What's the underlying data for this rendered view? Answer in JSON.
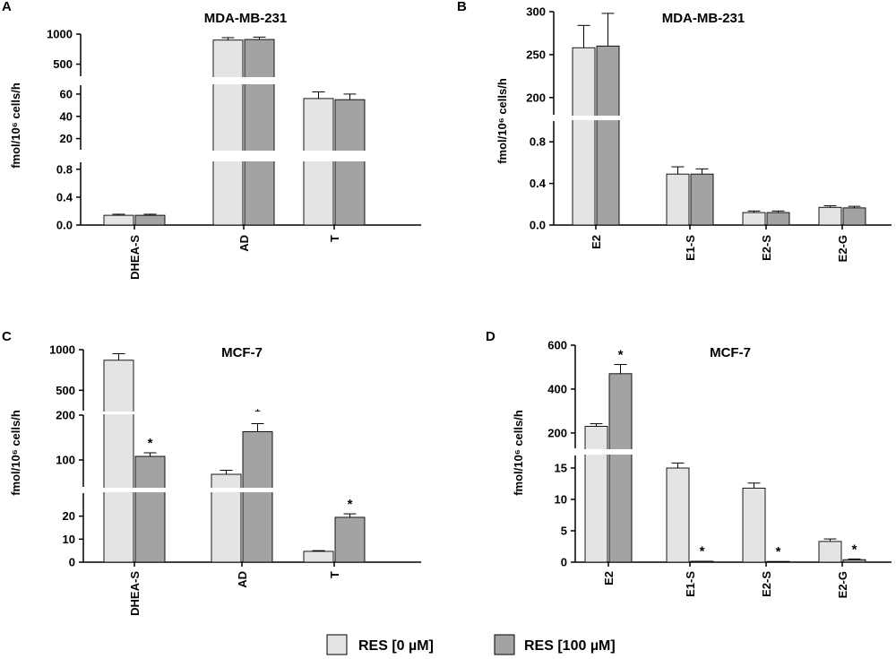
{
  "legend": {
    "series": [
      {
        "name": "RES [0 µM]",
        "color": "#e4e4e4"
      },
      {
        "name": "RES [100 µM]",
        "color": "#a3a3a3"
      }
    ]
  },
  "chart_data": [
    {
      "panel": "A",
      "type": "bar",
      "title": "MDA-MB-231",
      "ylabel": "fmol/10⁶ cells/h",
      "categories": [
        "DHEA-S",
        "AD",
        "T"
      ],
      "y_segments": [
        {
          "range": [
            0,
            0.9
          ],
          "ticks": [
            "0.0",
            "0.4",
            "0.8"
          ]
        },
        {
          "range": [
            10,
            68
          ],
          "ticks": [
            "20",
            "40",
            "60"
          ]
        },
        {
          "range": [
            300,
            1000
          ],
          "ticks": [
            "500",
            "1000"
          ]
        }
      ],
      "series": [
        {
          "name": "RES [0 µM]",
          "values": [
            0.14,
            900,
            56
          ],
          "errors": [
            0.015,
            40,
            6
          ],
          "significant": [
            false,
            false,
            false
          ]
        },
        {
          "name": "RES [100 µM]",
          "values": [
            0.14,
            910,
            55
          ],
          "errors": [
            0.015,
            40,
            5
          ],
          "significant": [
            false,
            false,
            false
          ]
        }
      ]
    },
    {
      "panel": "B",
      "type": "bar",
      "title": "MDA-MB-231",
      "ylabel": "fmol/10⁶ cells/h",
      "categories": [
        "E2",
        "E1-S",
        "E2-S",
        "E2-G"
      ],
      "y_segments": [
        {
          "range": [
            0,
            1.0
          ],
          "ticks": [
            "0.0",
            "0.4",
            "0.8"
          ]
        },
        {
          "range": [
            180,
            300
          ],
          "ticks": [
            "200",
            "250",
            "300"
          ]
        }
      ],
      "series": [
        {
          "name": "RES [0 µM]",
          "values": [
            258,
            0.49,
            0.12,
            0.17
          ],
          "errors": [
            26,
            0.07,
            0.015,
            0.015
          ],
          "significant": [
            false,
            false,
            false,
            false
          ]
        },
        {
          "name": "RES [100 µM]",
          "values": [
            260,
            0.49,
            0.12,
            0.165
          ],
          "errors": [
            38,
            0.05,
            0.015,
            0.015
          ],
          "significant": [
            false,
            false,
            false,
            false
          ]
        }
      ]
    },
    {
      "panel": "C",
      "type": "bar",
      "title": "MCF-7",
      "ylabel": "fmol/10⁶ cells/h",
      "categories": [
        "DHEA-S",
        "AD",
        "T"
      ],
      "y_segments": [
        {
          "range": [
            0,
            30
          ],
          "ticks": [
            "0",
            "10",
            "20"
          ]
        },
        {
          "range": [
            40,
            200
          ],
          "ticks": [
            "100",
            "200"
          ]
        },
        {
          "range": [
            250,
            1000
          ],
          "ticks": [
            "500",
            "1000"
          ]
        }
      ],
      "series": [
        {
          "name": "RES [0 µM]",
          "values": [
            870,
            68,
            4.7
          ],
          "errors": [
            80,
            9,
            0.3
          ],
          "significant": [
            false,
            false,
            false
          ]
        },
        {
          "name": "RES [100 µM]",
          "values": [
            108,
            163,
            19.5
          ],
          "errors": [
            8,
            18,
            1.5
          ],
          "significant": [
            true,
            true,
            true
          ]
        }
      ]
    },
    {
      "panel": "D",
      "type": "bar",
      "title": "MCF-7",
      "ylabel": "fmol/10⁶ cells/h",
      "categories": [
        "E2",
        "E1-S",
        "E2-S",
        "E2-G"
      ],
      "y_segments": [
        {
          "range": [
            0,
            17
          ],
          "ticks": [
            "0",
            "5",
            "10",
            "15"
          ]
        },
        {
          "range": [
            130,
            600
          ],
          "ticks": [
            "200",
            "400",
            "600"
          ]
        }
      ],
      "series": [
        {
          "name": "RES [0 µM]",
          "values": [
            230,
            15,
            11.8,
            3.3
          ],
          "errors": [
            12,
            0.8,
            0.8,
            0.4
          ],
          "significant": [
            false,
            false,
            false,
            false
          ]
        },
        {
          "name": "RES [100 µM]",
          "values": [
            470,
            0.15,
            0.12,
            0.4
          ],
          "errors": [
            42,
            0.05,
            0.05,
            0.1
          ],
          "significant": [
            true,
            true,
            true,
            true
          ]
        }
      ]
    }
  ]
}
